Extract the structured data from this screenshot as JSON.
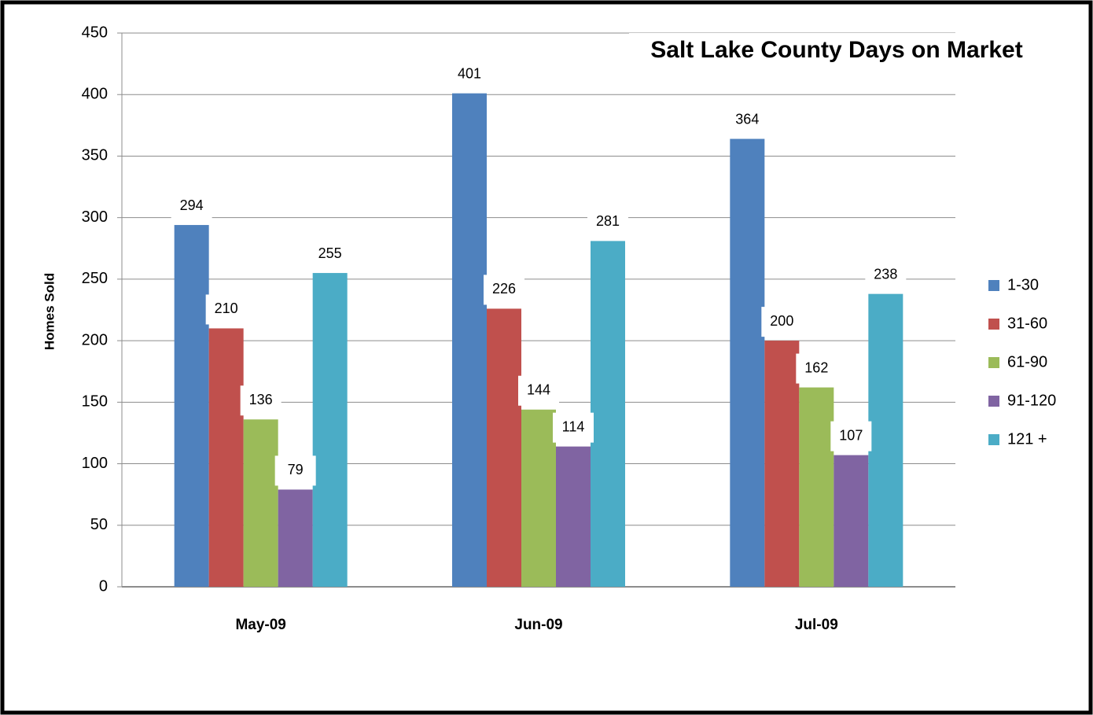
{
  "chart_data": {
    "type": "bar",
    "title": "Salt Lake County Days on Market",
    "y_label": "Homes Sold",
    "categories": [
      "May-09",
      "Jun-09",
      "Jul-09"
    ],
    "series": [
      {
        "name": "1-30",
        "color": "#4f81bd",
        "values": [
          294,
          401,
          364
        ]
      },
      {
        "name": "31-60",
        "color": "#c0504d",
        "values": [
          210,
          226,
          200
        ]
      },
      {
        "name": "61-90",
        "color": "#9bbb59",
        "values": [
          136,
          144,
          162
        ]
      },
      {
        "name": "91-120",
        "color": "#8064a2",
        "values": [
          79,
          114,
          107
        ]
      },
      {
        "name": "121 +",
        "color": "#4bacc6",
        "values": [
          255,
          281,
          238
        ]
      }
    ],
    "ylim": [
      0,
      450
    ],
    "yticks": [
      0,
      50,
      100,
      150,
      200,
      250,
      300,
      350,
      400,
      450
    ],
    "grid": true,
    "legend": "right"
  }
}
